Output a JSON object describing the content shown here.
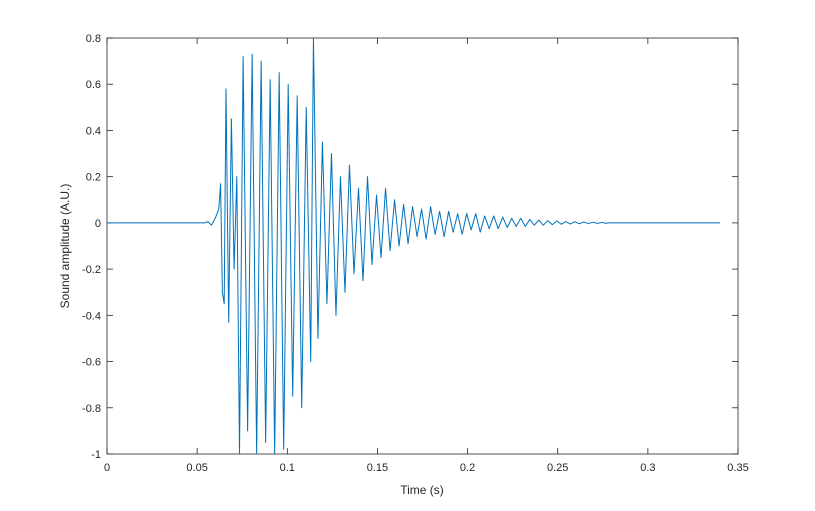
{
  "chart_data": {
    "type": "line",
    "xlabel": "Time (s)",
    "ylabel": "Sound amplitude (A.U.)",
    "xlim": [
      0,
      0.35
    ],
    "ylim": [
      -1,
      0.8
    ],
    "xticks": [
      0,
      0.05,
      0.1,
      0.15,
      0.2,
      0.25,
      0.3,
      0.35
    ],
    "yticks": [
      -1,
      -0.8,
      -0.6,
      -0.4,
      -0.2,
      0,
      0.2,
      0.4,
      0.6,
      0.8
    ],
    "grid": false,
    "series": [
      {
        "color": "#0072bd",
        "x": [
          0,
          0.054,
          0.056,
          0.058,
          0.06,
          0.062,
          0.063,
          0.064,
          0.065,
          0.066,
          0.0675,
          0.069,
          0.0705,
          0.072,
          0.0735,
          0.0755,
          0.078,
          0.0805,
          0.083,
          0.0855,
          0.088,
          0.0905,
          0.093,
          0.0955,
          0.098,
          0.1005,
          0.103,
          0.1055,
          0.108,
          0.1105,
          0.113,
          0.1145,
          0.117,
          0.1195,
          0.122,
          0.1245,
          0.127,
          0.1295,
          0.132,
          0.1345,
          0.137,
          0.1395,
          0.142,
          0.1445,
          0.147,
          0.1495,
          0.152,
          0.1545,
          0.157,
          0.1595,
          0.162,
          0.1645,
          0.167,
          0.1695,
          0.172,
          0.1745,
          0.177,
          0.1795,
          0.182,
          0.1845,
          0.187,
          0.1895,
          0.192,
          0.1945,
          0.197,
          0.1995,
          0.202,
          0.2045,
          0.207,
          0.2095,
          0.212,
          0.2145,
          0.217,
          0.2195,
          0.222,
          0.2245,
          0.227,
          0.2295,
          0.232,
          0.2345,
          0.237,
          0.2395,
          0.242,
          0.2445,
          0.247,
          0.2495,
          0.252,
          0.2545,
          0.257,
          0.2595,
          0.262,
          0.2645,
          0.267,
          0.2695,
          0.272,
          0.2745,
          0.277,
          0.278,
          0.34
        ],
        "values": [
          0,
          0,
          0.005,
          -0.01,
          0.02,
          0.06,
          0.17,
          -0.3,
          -0.35,
          0.58,
          -0.43,
          0.45,
          -0.2,
          0.2,
          -1,
          0.72,
          -0.9,
          0.73,
          -1,
          0.7,
          -0.95,
          0.62,
          -1,
          0.65,
          -0.98,
          0.6,
          -0.75,
          0.55,
          -0.8,
          0.5,
          -0.6,
          0.8,
          -0.5,
          0.35,
          -0.35,
          0.3,
          -0.4,
          0.2,
          -0.3,
          0.25,
          -0.22,
          0.15,
          -0.25,
          0.2,
          -0.18,
          0.12,
          -0.15,
          0.15,
          -0.12,
          0.1,
          -0.1,
          0.08,
          -0.09,
          0.07,
          -0.06,
          0.06,
          -0.07,
          0.07,
          -0.05,
          0.05,
          -0.06,
          0.05,
          -0.04,
          0.04,
          -0.05,
          0.04,
          -0.03,
          0.04,
          -0.04,
          0.03,
          -0.025,
          0.03,
          -0.025,
          0.025,
          -0.02,
          0.02,
          -0.015,
          0.02,
          -0.015,
          0.015,
          -0.01,
          0.012,
          -0.01,
          0.01,
          -0.008,
          0.008,
          -0.006,
          0.006,
          -0.005,
          0.005,
          -0.004,
          0.004,
          -0.003,
          0.003,
          -0.002,
          0.002,
          -0.002,
          0,
          0
        ]
      }
    ]
  }
}
